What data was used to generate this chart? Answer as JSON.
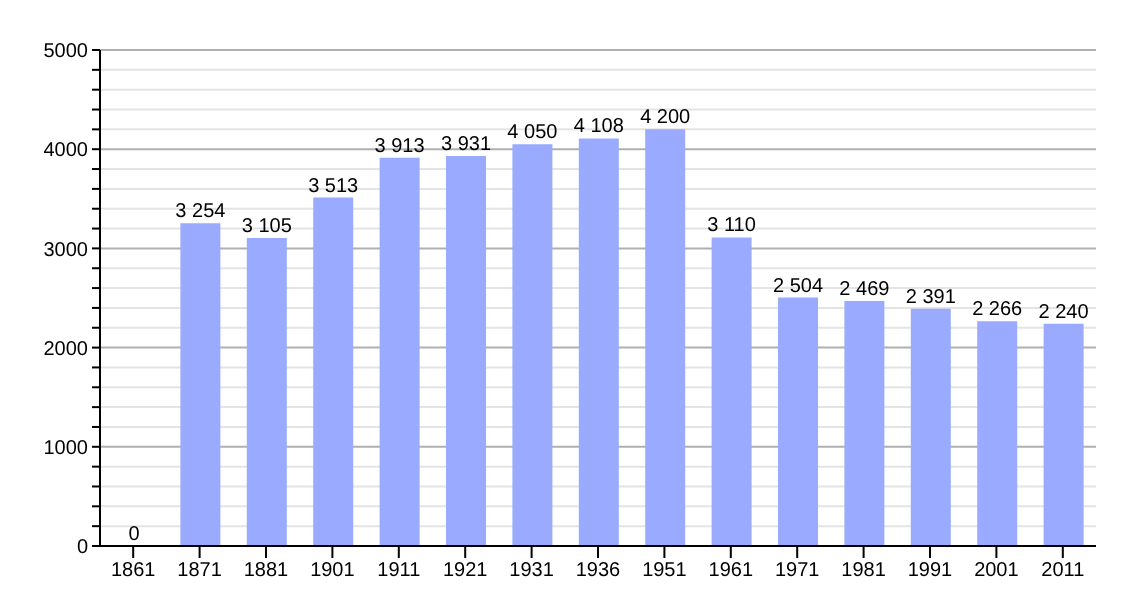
{
  "chart_data": {
    "type": "bar",
    "categories": [
      "1861",
      "1871",
      "1881",
      "1901",
      "1911",
      "1921",
      "1931",
      "1936",
      "1951",
      "1961",
      "1971",
      "1981",
      "1991",
      "2001",
      "2011"
    ],
    "values": [
      0,
      3254,
      3105,
      3513,
      3913,
      3931,
      4050,
      4108,
      4200,
      3110,
      2504,
      2469,
      2391,
      2266,
      2240
    ],
    "value_labels": [
      "0",
      "3 254",
      "3 105",
      "3 513",
      "3 913",
      "3 931",
      "4 050",
      "4 108",
      "4 200",
      "3 110",
      "2 504",
      "2 469",
      "2 391",
      "2 266",
      "2 240"
    ],
    "color": "#99aaff",
    "ylim": [
      0,
      5000
    ],
    "yticks": [
      0,
      {
        "value": 200,
        "label": null
      },
      {
        "value": 400,
        "label": null
      },
      {
        "value": 600,
        "label": null
      },
      {
        "value": 800,
        "label": null
      },
      1000,
      {
        "value": 1200,
        "label": null
      },
      {
        "value": 1400,
        "label": null
      },
      {
        "value": 1600,
        "label": null
      },
      {
        "value": 1800,
        "label": null
      },
      2000,
      {
        "value": 2200,
        "label": null
      },
      {
        "value": 2400,
        "label": null
      },
      {
        "value": 2600,
        "label": null
      },
      {
        "value": 2800,
        "label": null
      },
      3000,
      {
        "value": 3200,
        "label": null
      },
      {
        "value": 3400,
        "label": null
      },
      {
        "value": 3600,
        "label": null
      },
      {
        "value": 3800,
        "label": null
      },
      4000,
      {
        "value": 4200,
        "label": null
      },
      {
        "value": 4400,
        "label": null
      },
      {
        "value": 4600,
        "label": null
      },
      {
        "value": 4800,
        "label": null
      },
      5000
    ],
    "grid": "y"
  }
}
